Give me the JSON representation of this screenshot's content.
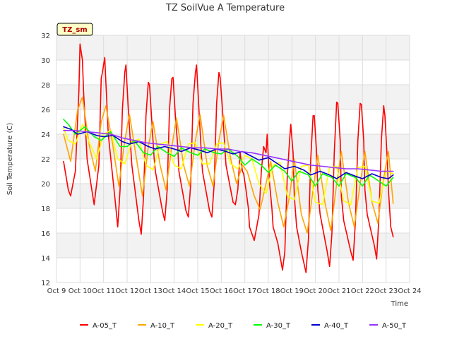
{
  "chart_data": {
    "type": "line",
    "title": "TZ SoilVue A Temperature",
    "xlabel": "Time",
    "ylabel": "Soil Temperature (C)",
    "site_label": "TZ_sm",
    "xlim": [
      9,
      24
    ],
    "ylim": [
      12,
      32
    ],
    "x_ticks": [
      9,
      10,
      11,
      12,
      13,
      14,
      15,
      16,
      17,
      18,
      19,
      20,
      21,
      22,
      23,
      24
    ],
    "x_tick_labels": [
      "Oct 9",
      "Oct 10",
      "Oct 11",
      "Oct 12",
      "Oct 13",
      "Oct 14",
      "Oct 15",
      "Oct 16",
      "Oct 17",
      "Oct 18",
      "Oct 19",
      "Oct 20",
      "Oct 21",
      "Oct 22",
      "Oct 23",
      "Oct 24"
    ],
    "y_ticks": [
      12,
      14,
      16,
      18,
      20,
      22,
      24,
      26,
      28,
      30,
      32
    ],
    "y_tick_labels": [
      "12",
      "14",
      "16",
      "18",
      "20",
      "22",
      "24",
      "26",
      "28",
      "30",
      "32"
    ],
    "grid": true,
    "legend_position": "bottom",
    "series": [
      {
        "name": "A-05_T",
        "color": "#ff0000",
        "x": [
          9.3,
          9.5,
          9.6,
          9.8,
          9.95,
          10.0,
          10.1,
          10.15,
          10.3,
          10.5,
          10.6,
          10.8,
          10.9,
          10.95,
          11.05,
          11.15,
          11.2,
          11.5,
          11.6,
          11.7,
          11.8,
          11.9,
          11.95,
          12.05,
          12.15,
          12.2,
          12.5,
          12.6,
          12.7,
          12.8,
          12.9,
          12.95,
          13.05,
          13.15,
          13.2,
          13.5,
          13.6,
          13.7,
          13.8,
          13.9,
          13.95,
          14.05,
          14.15,
          14.2,
          14.5,
          14.6,
          14.7,
          14.8,
          14.9,
          14.95,
          15.05,
          15.15,
          15.2,
          15.5,
          15.6,
          15.7,
          15.8,
          15.9,
          15.95,
          16.05,
          16.15,
          16.2,
          16.5,
          16.6,
          16.7,
          16.8,
          16.9,
          16.95,
          17.05,
          17.15,
          17.2,
          17.4,
          17.6,
          17.7,
          17.8,
          17.9,
          17.95,
          18.05,
          18.15,
          18.2,
          18.4,
          18.6,
          18.7,
          18.8,
          18.9,
          18.95,
          19.05,
          19.1,
          19.2,
          19.4,
          19.6,
          19.7,
          19.8,
          19.9,
          19.95,
          20.05,
          20.1,
          20.2,
          20.5,
          20.6,
          20.7,
          20.8,
          20.9,
          20.95,
          21.05,
          21.1,
          21.2,
          21.5,
          21.6,
          21.7,
          21.8,
          21.9,
          21.95,
          22.05,
          22.1,
          22.2,
          22.5,
          22.6,
          22.7,
          22.8,
          22.9,
          22.95,
          23.05,
          23.1,
          23.2,
          23.3
        ],
        "values": [
          21.8,
          19.5,
          19.0,
          21.0,
          27.5,
          31.3,
          30.0,
          27.5,
          22.0,
          19.5,
          18.3,
          21.5,
          28.5,
          29.0,
          30.2,
          26.0,
          24.0,
          18.5,
          16.5,
          19.5,
          26.0,
          29.0,
          29.6,
          26.0,
          23.0,
          21.5,
          17.0,
          15.9,
          19.0,
          25.5,
          28.2,
          28.0,
          25.0,
          22.0,
          21.0,
          17.8,
          17.0,
          19.5,
          26.0,
          28.5,
          28.6,
          25.5,
          23.0,
          21.0,
          17.8,
          17.3,
          20.0,
          26.5,
          29.0,
          29.6,
          26.0,
          22.5,
          21.0,
          17.8,
          17.3,
          20.0,
          26.5,
          29.0,
          28.6,
          26.0,
          23.0,
          21.5,
          18.5,
          18.3,
          19.5,
          22.5,
          21.0,
          20.8,
          19.5,
          18.0,
          16.5,
          15.4,
          17.5,
          21.0,
          23.0,
          22.5,
          24.0,
          20.0,
          18.0,
          16.5,
          15.2,
          13.0,
          14.5,
          20.5,
          23.5,
          24.8,
          22.5,
          19.0,
          16.5,
          14.5,
          12.8,
          15.5,
          22.0,
          25.5,
          25.5,
          22.5,
          19.5,
          17.5,
          14.5,
          13.3,
          16.0,
          22.5,
          26.6,
          26.5,
          23.5,
          19.0,
          17.0,
          14.5,
          13.8,
          17.0,
          23.5,
          26.5,
          26.4,
          23.5,
          19.5,
          17.5,
          15.0,
          13.9,
          17.5,
          23.5,
          26.3,
          25.5,
          22.0,
          19.5,
          16.5,
          15.7
        ]
      },
      {
        "name": "A-10_T",
        "color": "#ffa500",
        "x": [
          9.3,
          9.6,
          9.9,
          10.1,
          10.4,
          10.65,
          10.9,
          11.1,
          11.4,
          11.65,
          11.9,
          12.1,
          12.4,
          12.65,
          12.9,
          13.1,
          13.4,
          13.65,
          13.9,
          14.1,
          14.4,
          14.65,
          14.9,
          15.1,
          15.4,
          15.65,
          15.9,
          16.1,
          16.4,
          16.65,
          16.9,
          17.1,
          17.4,
          17.65,
          17.9,
          18.1,
          18.4,
          18.65,
          18.9,
          19.1,
          19.4,
          19.65,
          19.9,
          20.1,
          20.4,
          20.65,
          20.9,
          21.1,
          21.4,
          21.65,
          21.9,
          22.1,
          22.4,
          22.65,
          22.9,
          23.1,
          23.3
        ],
        "values": [
          24.0,
          21.8,
          26.0,
          27.0,
          23.0,
          21.0,
          25.0,
          26.3,
          23.0,
          19.8,
          23.5,
          25.6,
          22.0,
          19.0,
          23.0,
          25.0,
          21.5,
          19.5,
          23.0,
          25.3,
          21.5,
          19.8,
          23.5,
          25.6,
          21.5,
          19.8,
          23.5,
          25.5,
          22.0,
          20.0,
          21.5,
          21.0,
          19.0,
          17.9,
          20.0,
          21.8,
          18.5,
          16.5,
          19.0,
          22.0,
          17.5,
          16.0,
          19.5,
          22.3,
          18.5,
          16.2,
          20.0,
          22.6,
          18.5,
          16.5,
          20.0,
          22.6,
          18.5,
          16.8,
          20.5,
          22.6,
          18.4
        ]
      },
      {
        "name": "A-20_T",
        "color": "#ffff00",
        "x": [
          9.3,
          9.5,
          9.8,
          10.1,
          10.4,
          10.7,
          11.0,
          11.3,
          11.6,
          11.9,
          12.2,
          12.5,
          12.8,
          13.1,
          13.4,
          13.7,
          14.0,
          14.3,
          14.6,
          14.9,
          15.2,
          15.5,
          15.8,
          16.1,
          16.4,
          16.7,
          17.0,
          17.3,
          17.6,
          17.9,
          18.2,
          18.5,
          18.8,
          19.1,
          19.4,
          19.7,
          20.0,
          20.3,
          20.6,
          20.9,
          21.2,
          21.5,
          21.8,
          22.1,
          22.4,
          22.7,
          23.0,
          23.3
        ],
        "values": [
          24.5,
          23.5,
          23.2,
          24.8,
          23.3,
          22.0,
          24.0,
          24.3,
          22.0,
          21.6,
          23.4,
          23.6,
          21.5,
          21.1,
          23.2,
          23.4,
          21.5,
          21.2,
          23.2,
          23.3,
          21.6,
          21.6,
          23.2,
          23.3,
          21.6,
          21.2,
          22.3,
          22.0,
          20.0,
          19.2,
          21.5,
          21.7,
          19.0,
          18.7,
          21.4,
          21.5,
          18.5,
          18.3,
          21.3,
          21.4,
          18.6,
          18.3,
          21.3,
          21.4,
          18.6,
          18.4,
          21.0,
          20.8
        ]
      },
      {
        "name": "A-30_T",
        "color": "#00ff00",
        "x": [
          9.3,
          9.5,
          9.8,
          10.2,
          10.6,
          10.9,
          11.3,
          11.7,
          12.0,
          12.3,
          12.7,
          13.0,
          13.3,
          13.7,
          14.0,
          14.3,
          14.7,
          15.0,
          15.3,
          15.7,
          16.0,
          16.3,
          16.7,
          17.0,
          17.3,
          17.7,
          18.0,
          18.3,
          18.7,
          19.0,
          19.3,
          19.7,
          20.0,
          20.3,
          20.7,
          21.0,
          21.3,
          21.7,
          22.0,
          22.3,
          22.7,
          23.0,
          23.3
        ],
        "values": [
          25.2,
          24.8,
          24.0,
          24.6,
          23.8,
          23.5,
          24.2,
          23.0,
          23.0,
          23.5,
          22.5,
          22.3,
          23.0,
          22.5,
          22.2,
          22.9,
          22.5,
          22.3,
          22.8,
          22.5,
          22.4,
          22.8,
          22.2,
          21.5,
          22.0,
          21.5,
          20.9,
          21.5,
          21.0,
          20.2,
          21.0,
          20.7,
          19.8,
          20.8,
          20.5,
          19.8,
          20.8,
          20.5,
          19.8,
          20.7,
          20.2,
          19.8,
          20.5
        ]
      },
      {
        "name": "A-40_T",
        "color": "#0000cc",
        "x": [
          9.3,
          9.6,
          9.9,
          10.3,
          10.7,
          11.0,
          11.4,
          11.8,
          12.1,
          12.5,
          12.9,
          13.2,
          13.6,
          14.0,
          14.3,
          14.7,
          15.1,
          15.4,
          15.8,
          16.2,
          16.5,
          16.9,
          17.3,
          17.6,
          18.0,
          18.4,
          18.7,
          19.1,
          19.5,
          19.8,
          20.2,
          20.6,
          20.9,
          21.3,
          21.7,
          22.0,
          22.4,
          22.8,
          23.1,
          23.3
        ],
        "values": [
          24.6,
          24.4,
          24.0,
          24.2,
          23.9,
          23.8,
          23.9,
          23.4,
          23.2,
          23.4,
          23.0,
          22.8,
          23.0,
          22.8,
          22.6,
          22.9,
          22.7,
          22.5,
          22.8,
          22.6,
          22.4,
          22.6,
          22.2,
          21.9,
          22.1,
          21.6,
          21.2,
          21.4,
          21.1,
          20.7,
          21.0,
          20.7,
          20.4,
          20.9,
          20.6,
          20.4,
          20.8,
          20.5,
          20.4,
          20.7
        ]
      },
      {
        "name": "A-50_T",
        "color": "#9933ff",
        "x": [
          9.3,
          9.8,
          10.3,
          10.8,
          11.3,
          11.8,
          12.3,
          12.8,
          13.3,
          13.8,
          14.3,
          14.8,
          15.3,
          15.8,
          16.3,
          16.8,
          17.3,
          17.8,
          18.3,
          18.8,
          19.3,
          19.8,
          20.3,
          20.8,
          21.3,
          21.8,
          22.3,
          22.8,
          23.3
        ],
        "values": [
          24.3,
          24.3,
          24.2,
          24.1,
          24.0,
          23.7,
          23.5,
          23.3,
          23.2,
          23.1,
          23.0,
          22.9,
          22.9,
          22.8,
          22.8,
          22.6,
          22.5,
          22.3,
          22.1,
          21.9,
          21.7,
          21.5,
          21.4,
          21.3,
          21.2,
          21.2,
          21.1,
          21.0,
          21.0
        ]
      }
    ]
  }
}
